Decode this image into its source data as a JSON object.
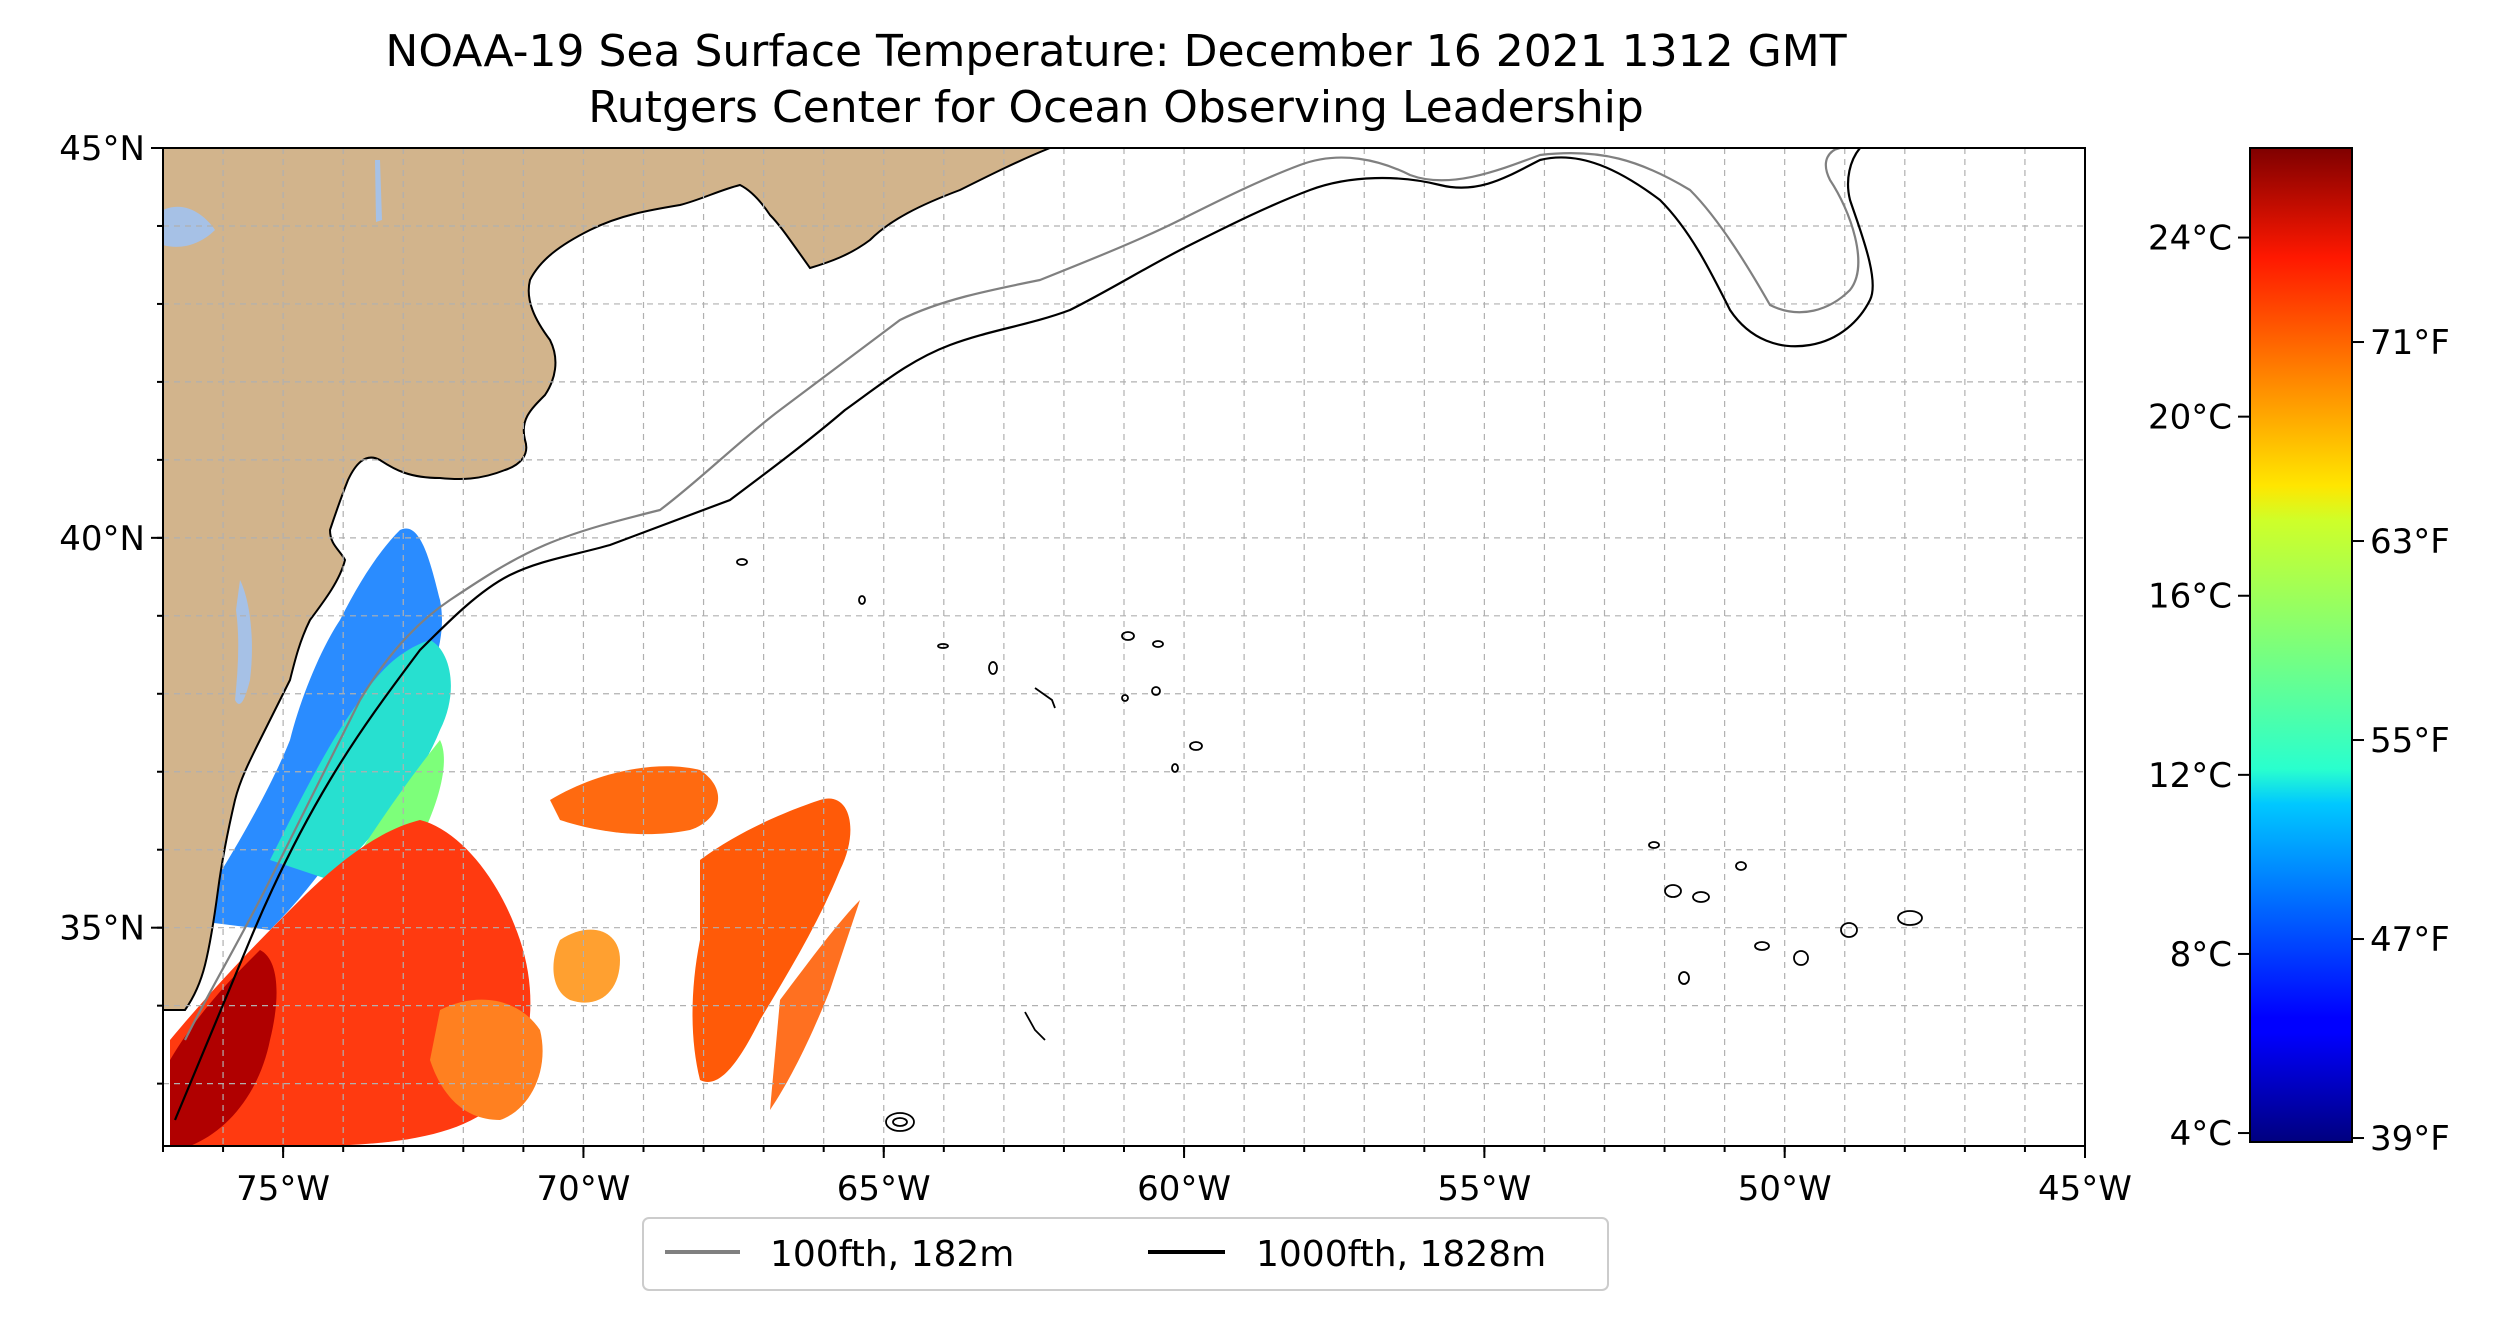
{
  "title_line1": "NOAA-19 Sea Surface Temperature: December 16 2021 1312 GMT",
  "title_line2": "Rutgers Center for Ocean Observing Leadership",
  "map": {
    "extent": {
      "lon": [
        -77,
        -45
      ],
      "lat": [
        32.2,
        45
      ]
    },
    "lon_ticks": [
      {
        "lon": -75,
        "label": "75°W"
      },
      {
        "lon": -70,
        "label": "70°W"
      },
      {
        "lon": -65,
        "label": "65°W"
      },
      {
        "lon": -60,
        "label": "60°W"
      },
      {
        "lon": -55,
        "label": "55°W"
      },
      {
        "lon": -50,
        "label": "50°W"
      },
      {
        "lon": -45,
        "label": "45°W"
      }
    ],
    "lat_ticks": [
      {
        "lat": 45,
        "label": "45°N"
      },
      {
        "lat": 40,
        "label": "40°N"
      },
      {
        "lat": 35,
        "label": "35°N"
      }
    ],
    "gridlines": true,
    "colors": {
      "land": "#d2b48c",
      "lakes": "#a6c1e6",
      "isobath_100fth": "#808080",
      "isobath_1000fth": "#000000",
      "grid": "#b0b0b0"
    }
  },
  "legend": {
    "position": "bottom-center",
    "entries": [
      {
        "label": "100fth, 182m",
        "color": "#808080"
      },
      {
        "label": "1000fth, 1828m",
        "color": "#000000"
      }
    ]
  },
  "colorbar": {
    "colormap": "jet",
    "range_c": [
      3.8,
      26.0
    ],
    "celsius_ticks": [
      {
        "value": 4,
        "label": "4°C"
      },
      {
        "value": 8,
        "label": "8°C"
      },
      {
        "value": 12,
        "label": "12°C"
      },
      {
        "value": 16,
        "label": "16°C"
      },
      {
        "value": 20,
        "label": "20°C"
      },
      {
        "value": 24,
        "label": "24°C"
      }
    ],
    "fahrenheit_ticks": [
      {
        "value": 39,
        "label": "39°F"
      },
      {
        "value": 47,
        "label": "47°F"
      },
      {
        "value": 55,
        "label": "55°F"
      },
      {
        "value": 63,
        "label": "63°F"
      },
      {
        "value": 71,
        "label": "71°F"
      }
    ]
  }
}
